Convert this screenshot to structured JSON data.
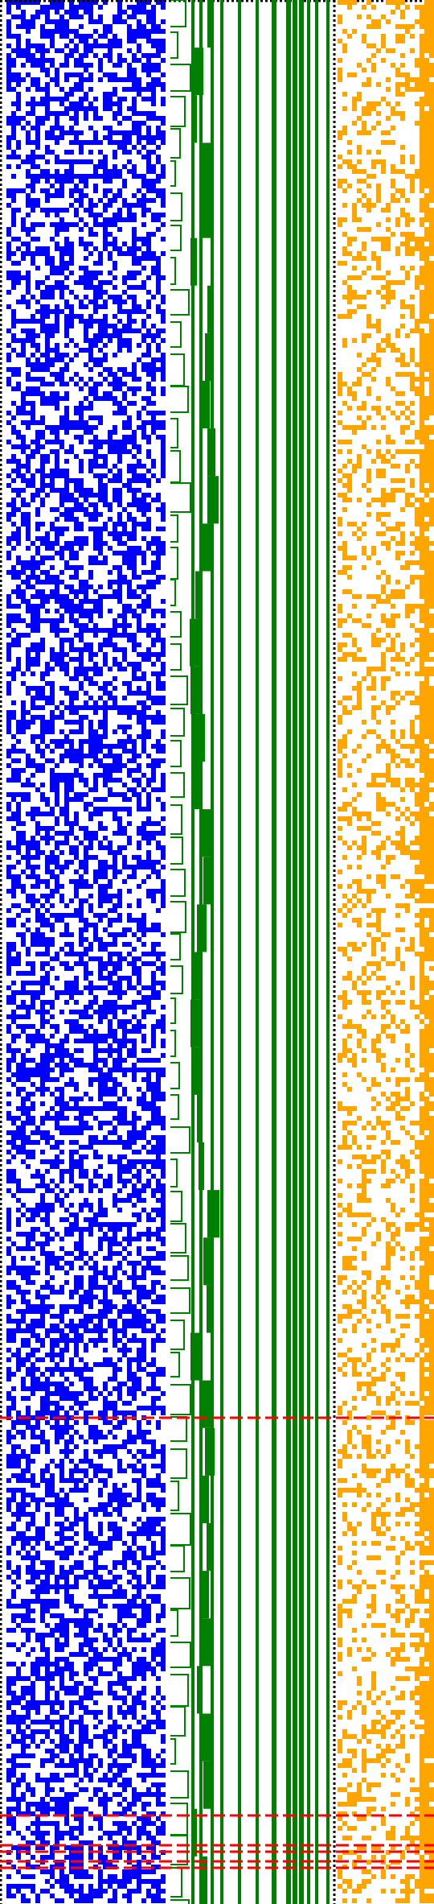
{
  "title": "",
  "colors": {
    "background": "#ffffff",
    "left_pattern": "#0000ff",
    "middle_bars": "#008000",
    "right_pattern": "#ffa500",
    "highlight": "#ff0000",
    "dotted_border": "#000000"
  },
  "legend": [],
  "visual": {
    "panels": [
      {
        "name": "left-dense-blue-pattern",
        "kind": "binary-dot-matrix",
        "density": 0.52
      },
      {
        "name": "middle-green-stacked-bars",
        "kind": "stacked-step-bars",
        "bar_count": 16
      },
      {
        "name": "right-orange-sparse-pattern",
        "kind": "binary-dot-matrix",
        "density": 0.3
      }
    ],
    "highlight_rows": [
      {
        "position": "mid-lower"
      },
      {
        "position": "bottom-cluster-1"
      },
      {
        "position": "bottom-cluster-2"
      },
      {
        "position": "bottom-cluster-3"
      },
      {
        "position": "bottom-cluster-4"
      }
    ]
  }
}
